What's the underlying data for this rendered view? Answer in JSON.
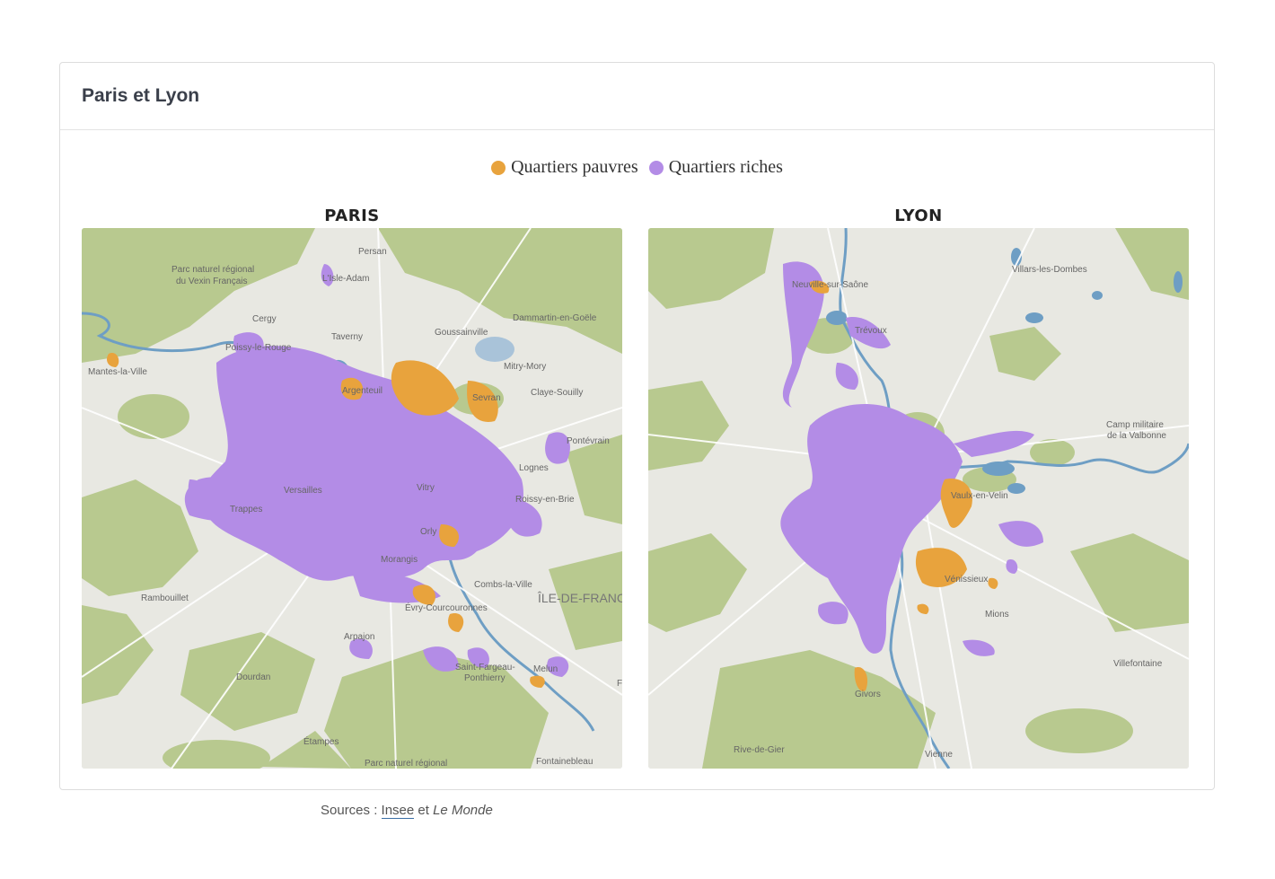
{
  "card": {
    "title": "Paris et Lyon"
  },
  "legend": [
    {
      "label": "Quartiers pauvres",
      "color": "#e8a33d"
    },
    {
      "label": "Quartiers riches",
      "color": "#b38ce6"
    }
  ],
  "colors": {
    "poor": "#e8a33d",
    "rich": "#b38ce6",
    "land": "#e8e8e2",
    "forest": "#b8c98f",
    "water": "#6e9ec4"
  },
  "maps": [
    {
      "id": "paris",
      "title": "PARIS",
      "labels": {
        "park_vexin_1": "Parc naturel régional",
        "park_vexin_2": "du Vexin Français",
        "persan": "Persan",
        "isle_adam": "L'Isle-Adam",
        "cergy": "Cergy",
        "dammartin": "Dammartin-en-Goële",
        "goussainville": "Goussainville",
        "taverny": "Taverny",
        "poissy": "Poissy-le-Rouge",
        "mantes": "Mantes-la-Ville",
        "mitry": "Mitry-Mory",
        "argenteuil": "Argenteuil",
        "sevran": "Sevran",
        "claye": "Claye-Souilly",
        "pontevrain": "Pontévrain",
        "lognes": "Lognes",
        "versailles": "Versailles",
        "vitry": "Vitry",
        "roissy": "Roissy-en-Brie",
        "trappes": "Trappes",
        "orly": "Orly",
        "morangis": "Morangis",
        "combs": "Combs-la-Ville",
        "rambouillet": "Rambouillet",
        "idf": "ÎLE-DE-FRANC",
        "evry": "Évry-Courcouronnes",
        "arpajon": "Arpajon",
        "saint_fargeau_1": "Saint-Fargeau-",
        "saint_fargeau_2": "Ponthierry",
        "melun": "Melun",
        "dourdan": "Dourdan",
        "etampes": "Étampes",
        "park_gatinais": "Parc naturel régional",
        "fontainebleau": "Fontainebleau",
        "f_edge": "F"
      }
    },
    {
      "id": "lyon",
      "title": "LYON",
      "labels": {
        "villars": "Villars-les-Dombes",
        "neuville": "Neuville-sur-Saône",
        "trevoux": "Trévoux",
        "camp_1": "Camp militaire",
        "camp_2": "de la Valbonne",
        "vaulx": "Vaulx-en-Velin",
        "venissieux": "Vénissieux",
        "mions": "Mions",
        "villefontaine": "Villefontaine",
        "givors": "Givors",
        "rive_de_gier": "Rive-de-Gier",
        "vienne": "Vienne"
      }
    }
  ],
  "sources": {
    "prefix": "Sources : ",
    "link": "Insee",
    "middle": " et ",
    "outlet": "Le Monde"
  }
}
